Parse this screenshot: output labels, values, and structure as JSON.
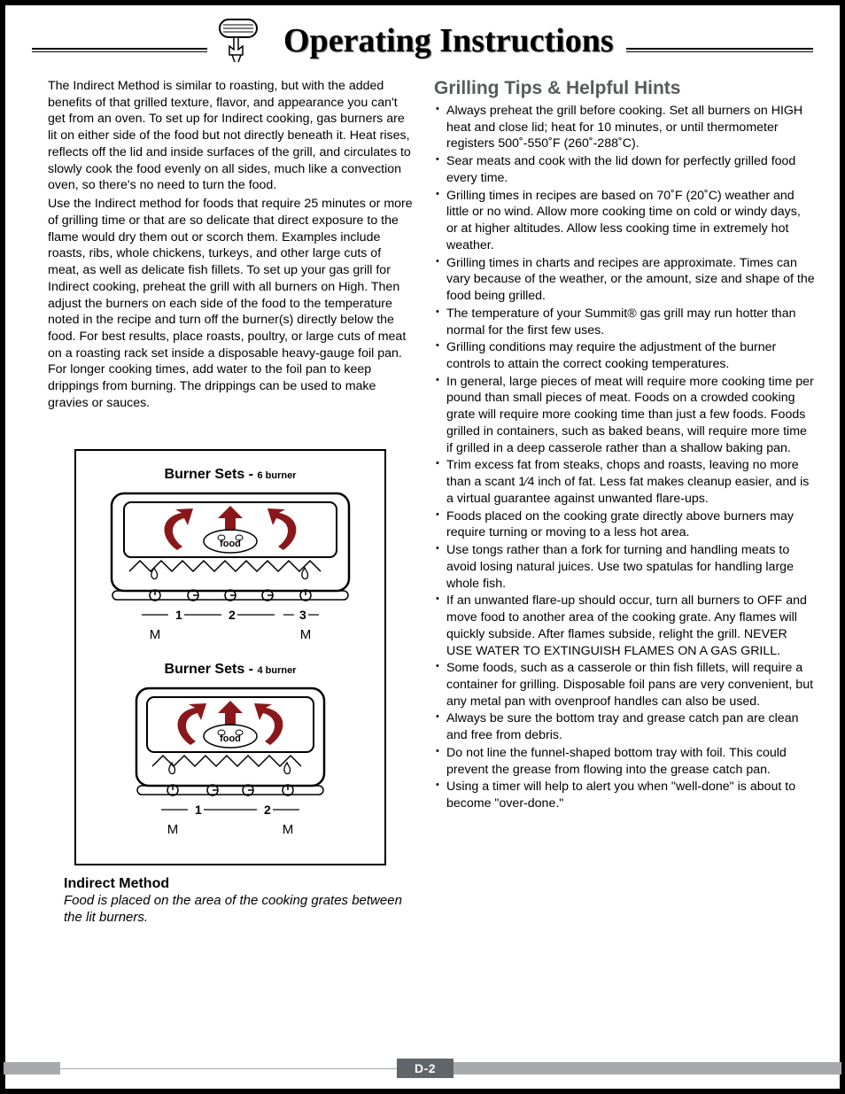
{
  "header": {
    "title": "Operating Instructions"
  },
  "left": {
    "para1": "The Indirect Method is similar to roasting, but with the added benefits of that grilled texture, flavor, and appearance you can't get from an oven. To set up for Indirect cooking, gas burners are lit on either side of the food but not directly beneath it. Heat rises, reflects off the lid and inside surfaces of the grill, and circulates to slowly cook the food evenly on all sides, much like a convection oven, so there's no need to turn the food.",
    "para2": "Use the Indirect method for foods that require 25 minutes or more of grilling time or that are so delicate that direct exposure to the flame would dry them out or scorch them. Examples include roasts, ribs, whole chickens, turkeys, and other large cuts of meat, as well as delicate fish fillets. To set up your gas grill for Indirect cooking, preheat the grill with all burners on High. Then adjust the burners on each side of the food to the temperature noted in the recipe and turn off the burner(s) directly below the food. For best results, place roasts, poultry, or large cuts of meat on a roasting rack set inside a disposable heavy-gauge foil pan. For longer cooking times, add water to the foil pan to keep drippings from burning. The drippings can be used to make gravies or sauces."
  },
  "diagram": {
    "set1_label": "Burner Sets  -",
    "set1_sub": "6 burner",
    "set2_label": "Burner Sets  -",
    "set2_sub": "4 burner",
    "food_label": "food",
    "caption_title": "Indirect Method",
    "caption_text": "Food is placed on the area of the cooking grates between the lit burners."
  },
  "right": {
    "heading": "Grilling Tips & Helpful Hints",
    "tips": [
      "Always preheat the grill before cooking. Set all burners on HIGH heat and close lid; heat for 10 minutes, or until thermometer registers 500˚-550˚F (260˚-288˚C).",
      "Sear meats and cook with the lid down for perfectly grilled food every time.",
      "Grilling times in recipes are based on 70˚F (20˚C) weather and little or no wind. Allow more cooking time on cold or windy days, or at higher altitudes. Allow less cooking time in extremely hot weather.",
      "Grilling times in charts and recipes are approximate. Times can vary because of the weather, or the amount, size and shape of the food being grilled.",
      "The temperature of your Summit® gas grill may run hotter than normal for the first few uses.",
      "Grilling conditions may require the adjustment of the burner controls to attain the correct cooking temperatures.",
      "In general, large pieces of meat will require more cooking time per pound than small pieces of meat. Foods on a crowded cooking grate will require more cooking time than just a few foods. Foods grilled in containers, such as baked beans, will require more time if grilled in a deep casserole rather than a shallow baking pan.",
      "Trim excess fat from steaks, chops and roasts, leaving no more than a scant 1⁄4 inch of fat. Less fat makes cleanup easier, and is a virtual guarantee against unwanted flare-ups.",
      "Foods placed on the cooking grate directly above burners may require turning or moving to a less hot area.",
      "Use tongs rather than a fork for turning and handling meats to avoid losing natural juices. Use two spatulas for handling large whole fish.",
      "If an unwanted flare-up should occur, turn all burners to OFF and move food to another area of the cooking grate. Any flames will quickly subside. After flames subside, relight the grill. NEVER USE WATER TO EXTINGUISH FLAMES ON A GAS GRILL.",
      "Some foods, such as a casserole or thin fish fillets, will require a container for grilling. Disposable foil pans are very convenient, but any metal pan with ovenproof handles can also be used.",
      "Always be sure the bottom tray and grease catch pan are clean and free from debris.",
      "Do not line the funnel-shaped bottom tray with foil. This could prevent the grease from flowing into the grease catch pan.",
      "Using a timer will help to alert you when \"well-done\" is about to become \"over-done.\""
    ]
  },
  "footer": {
    "page_number": "D-2"
  },
  "colors": {
    "heading_gray": "#575a5c",
    "footer_bar": "#a7a9ac",
    "page_num_bg": "#5f6568",
    "arrow_red": "#8a171a"
  }
}
